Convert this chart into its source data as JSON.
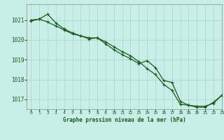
{
  "title": "Graphe pression niveau de la mer (hPa)",
  "background_color": "#c8eee8",
  "grid_color": "#b0d8d0",
  "line_color": "#1a5c1a",
  "xlim": [
    -0.5,
    23
  ],
  "ylim": [
    1016.5,
    1021.8
  ],
  "yticks": [
    1017,
    1018,
    1019,
    1020,
    1021
  ],
  "xticks": [
    0,
    1,
    2,
    3,
    4,
    5,
    6,
    7,
    8,
    9,
    10,
    11,
    12,
    13,
    14,
    15,
    16,
    17,
    18,
    19,
    20,
    21,
    22,
    23
  ],
  "series1": {
    "x": [
      0,
      1,
      2,
      3,
      4,
      5,
      6,
      7,
      8,
      9,
      10,
      11,
      12,
      13,
      14,
      15,
      16,
      17,
      18,
      19,
      20,
      21,
      22,
      23
    ],
    "y": [
      1021.0,
      1021.05,
      1021.3,
      1020.85,
      1020.55,
      1020.35,
      1020.2,
      1020.1,
      1020.1,
      1019.9,
      1019.65,
      1019.4,
      1019.2,
      1018.9,
      1018.55,
      1018.25,
      1017.75,
      1017.45,
      1016.75,
      1016.7,
      1016.65,
      1016.65,
      1016.8,
      1017.2
    ]
  },
  "series2": {
    "x": [
      0,
      1,
      2,
      3,
      4,
      5,
      6,
      7,
      8,
      9,
      10,
      11,
      12,
      13,
      14,
      15,
      16,
      17,
      18,
      19,
      20,
      21,
      22,
      23
    ],
    "y": [
      1020.95,
      1021.05,
      1020.9,
      1020.7,
      1020.5,
      1020.3,
      1020.2,
      1020.05,
      1020.1,
      1019.8,
      1019.5,
      1019.25,
      1019.05,
      1018.8,
      1018.95,
      1018.6,
      1017.95,
      1017.85,
      1016.9,
      1016.7,
      1016.6,
      1016.6,
      1016.85,
      1017.2
    ]
  }
}
